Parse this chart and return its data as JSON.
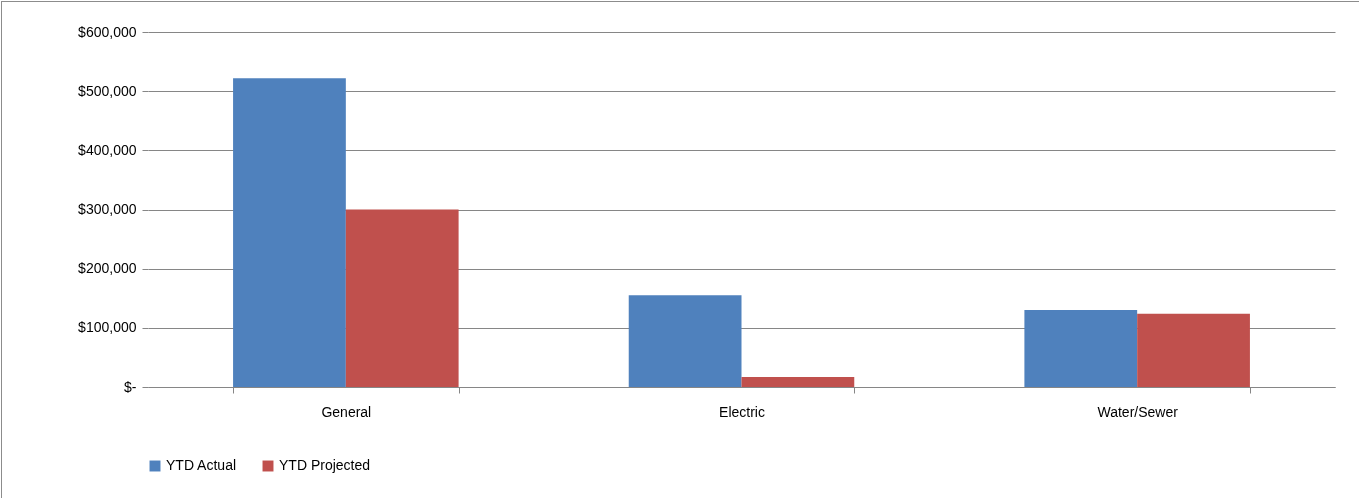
{
  "chart_data": {
    "type": "bar",
    "categories": [
      "General",
      "Electric",
      "Water/Sewer"
    ],
    "series": [
      {
        "name": "YTD Actual",
        "color": "#4f81bd",
        "values": [
          522000,
          155000,
          130000
        ]
      },
      {
        "name": "YTD Projected",
        "color": "#c0504d",
        "values": [
          300000,
          17000,
          124000
        ]
      }
    ],
    "ylim": [
      0,
      600000
    ],
    "yticks": [
      {
        "value": 0,
        "label": "$-"
      },
      {
        "value": 100000,
        "label": "$100,000"
      },
      {
        "value": 200000,
        "label": "$200,000"
      },
      {
        "value": 300000,
        "label": "$300,000"
      },
      {
        "value": 400000,
        "label": "$400,000"
      },
      {
        "value": 500000,
        "label": "$500,000"
      },
      {
        "value": 600000,
        "label": "$600,000"
      }
    ],
    "grid": "y",
    "legend": "bottom"
  }
}
